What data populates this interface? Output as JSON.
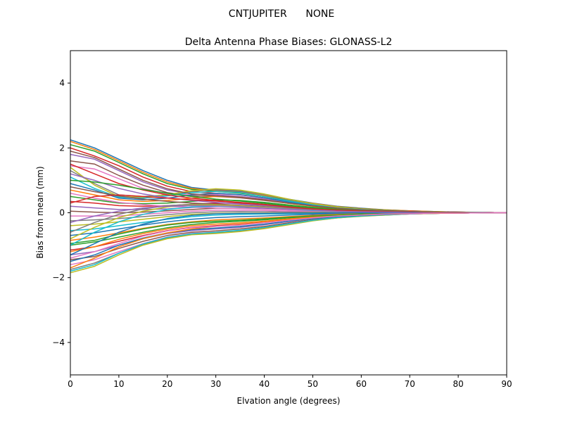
{
  "figure": {
    "suptitle": "CNTJUPITER      NONE"
  },
  "chart_data": {
    "type": "line",
    "title": "Delta Antenna Phase Biases: GLONASS-L2",
    "xlabel": "Elvation angle (degrees)",
    "ylabel": "Bias from mean (mm)",
    "xlim": [
      0,
      90
    ],
    "ylim": [
      -5,
      5
    ],
    "xticks": [
      0,
      10,
      20,
      30,
      40,
      50,
      60,
      70,
      80,
      90
    ],
    "yticks": [
      -4,
      -2,
      0,
      2,
      4
    ],
    "ytick_labels": [
      "−4",
      "−2",
      "0",
      "2",
      "4"
    ],
    "grid": false,
    "legend": "none",
    "x": [
      0,
      5,
      10,
      15,
      20,
      25,
      30,
      35,
      40,
      45,
      50,
      55,
      60,
      65,
      70,
      75,
      80,
      85,
      90
    ],
    "palette": [
      "#1f77b4",
      "#ff7f0e",
      "#2ca02c",
      "#d62728",
      "#9467bd",
      "#8c564b",
      "#e377c2",
      "#7f7f7f",
      "#bcbd22",
      "#17becf"
    ],
    "series": [
      {
        "values": [
          2.25,
          2.0,
          1.65,
          1.3,
          1.0,
          0.78,
          0.7,
          0.65,
          0.55,
          0.42,
          0.3,
          0.2,
          0.14,
          0.09,
          0.06,
          0.04,
          0.02,
          0.01,
          0.0
        ]
      },
      {
        "values": [
          2.2,
          1.95,
          1.6,
          1.25,
          0.95,
          0.75,
          0.68,
          0.63,
          0.53,
          0.4,
          0.29,
          0.19,
          0.13,
          0.09,
          0.06,
          0.04,
          0.02,
          0.01,
          0.0
        ]
      },
      {
        "values": [
          2.1,
          1.9,
          1.55,
          1.2,
          0.9,
          0.72,
          0.66,
          0.6,
          0.5,
          0.38,
          0.27,
          0.18,
          0.12,
          0.08,
          0.05,
          0.03,
          0.02,
          0.01,
          0.0
        ]
      },
      {
        "values": [
          2.0,
          1.75,
          1.45,
          1.1,
          0.82,
          0.65,
          0.6,
          0.55,
          0.46,
          0.35,
          0.25,
          0.17,
          0.11,
          0.07,
          0.05,
          0.03,
          0.02,
          0.01,
          0.0
        ]
      },
      {
        "values": [
          1.8,
          1.65,
          1.3,
          0.95,
          0.7,
          0.58,
          0.55,
          0.5,
          0.42,
          0.32,
          0.23,
          0.15,
          0.1,
          0.07,
          0.04,
          0.03,
          0.02,
          0.01,
          0.0
        ]
      },
      {
        "values": [
          1.6,
          1.5,
          1.15,
          0.85,
          0.62,
          0.52,
          0.5,
          0.46,
          0.38,
          0.29,
          0.21,
          0.14,
          0.09,
          0.06,
          0.04,
          0.03,
          0.01,
          0.01,
          0.0
        ]
      },
      {
        "values": [
          1.45,
          1.35,
          1.05,
          0.75,
          0.58,
          0.55,
          0.58,
          0.55,
          0.45,
          0.33,
          0.23,
          0.15,
          0.1,
          0.06,
          0.04,
          0.03,
          0.01,
          0.01,
          0.0
        ]
      },
      {
        "values": [
          1.3,
          0.9,
          0.55,
          0.5,
          0.55,
          0.65,
          0.72,
          0.68,
          0.56,
          0.4,
          0.27,
          0.17,
          0.11,
          0.07,
          0.04,
          0.03,
          0.01,
          0.01,
          0.0
        ]
      },
      {
        "values": [
          1.4,
          0.85,
          0.5,
          0.48,
          0.56,
          0.68,
          0.74,
          0.7,
          0.58,
          0.42,
          0.28,
          0.18,
          0.11,
          0.07,
          0.04,
          0.03,
          0.01,
          0.01,
          0.0
        ]
      },
      {
        "values": [
          1.1,
          0.75,
          0.48,
          0.45,
          0.52,
          0.62,
          0.66,
          0.62,
          0.5,
          0.36,
          0.24,
          0.15,
          0.1,
          0.06,
          0.04,
          0.02,
          0.01,
          0.01,
          0.0
        ]
      },
      {
        "values": [
          0.9,
          0.7,
          0.45,
          0.4,
          0.45,
          0.55,
          0.6,
          0.56,
          0.46,
          0.33,
          0.22,
          0.14,
          0.09,
          0.06,
          0.03,
          0.02,
          0.01,
          0.0,
          0.0
        ]
      },
      {
        "values": [
          0.7,
          0.55,
          0.4,
          0.35,
          0.38,
          0.45,
          0.5,
          0.48,
          0.4,
          0.29,
          0.2,
          0.13,
          0.08,
          0.05,
          0.03,
          0.02,
          0.01,
          0.0,
          0.0
        ]
      },
      {
        "values": [
          0.5,
          0.4,
          0.3,
          0.28,
          0.3,
          0.35,
          0.4,
          0.38,
          0.32,
          0.24,
          0.17,
          0.11,
          0.07,
          0.04,
          0.03,
          0.02,
          0.01,
          0.0,
          0.0
        ]
      },
      {
        "values": [
          0.35,
          0.3,
          0.22,
          0.2,
          0.22,
          0.26,
          0.3,
          0.29,
          0.25,
          0.19,
          0.13,
          0.09,
          0.06,
          0.04,
          0.02,
          0.01,
          0.01,
          0.0,
          0.0
        ]
      },
      {
        "values": [
          0.2,
          0.15,
          0.1,
          0.1,
          0.12,
          0.16,
          0.2,
          0.2,
          0.17,
          0.13,
          0.09,
          0.06,
          0.04,
          0.03,
          0.02,
          0.01,
          0.0,
          0.0,
          0.0
        ]
      },
      {
        "values": [
          0.05,
          0.02,
          0.0,
          0.02,
          0.06,
          0.1,
          0.14,
          0.14,
          0.12,
          0.09,
          0.06,
          0.04,
          0.03,
          0.02,
          0.01,
          0.01,
          0.0,
          0.0,
          0.0
        ]
      },
      {
        "values": [
          -0.1,
          -0.1,
          -0.1,
          -0.05,
          0.0,
          0.05,
          0.08,
          0.08,
          0.07,
          0.05,
          0.04,
          0.03,
          0.02,
          0.01,
          0.01,
          0.0,
          0.0,
          0.0,
          0.0
        ]
      },
      {
        "values": [
          -0.25,
          -0.22,
          -0.18,
          -0.12,
          -0.06,
          0.0,
          0.03,
          0.04,
          0.03,
          0.02,
          0.02,
          0.01,
          0.01,
          0.0,
          0.0,
          0.0,
          0.0,
          0.0,
          0.0
        ]
      },
      {
        "values": [
          -0.4,
          -0.35,
          -0.28,
          -0.2,
          -0.12,
          -0.05,
          -0.02,
          -0.01,
          -0.01,
          -0.01,
          0.0,
          0.0,
          0.0,
          0.0,
          0.0,
          0.0,
          0.0,
          0.0,
          0.0
        ]
      },
      {
        "values": [
          -0.55,
          -0.5,
          -0.4,
          -0.3,
          -0.2,
          -0.12,
          -0.07,
          -0.05,
          -0.04,
          -0.03,
          -0.02,
          -0.01,
          -0.01,
          0.0,
          0.0,
          0.0,
          0.0,
          0.0,
          0.0
        ]
      },
      {
        "values": [
          -0.7,
          -0.62,
          -0.5,
          -0.38,
          -0.28,
          -0.2,
          -0.15,
          -0.12,
          -0.1,
          -0.07,
          -0.05,
          -0.03,
          -0.02,
          -0.01,
          -0.01,
          0.0,
          0.0,
          0.0,
          0.0
        ]
      },
      {
        "values": [
          -0.85,
          -0.75,
          -0.62,
          -0.48,
          -0.36,
          -0.28,
          -0.22,
          -0.19,
          -0.16,
          -0.12,
          -0.08,
          -0.05,
          -0.03,
          -0.02,
          -0.01,
          -0.01,
          0.0,
          0.0,
          0.0
        ]
      },
      {
        "values": [
          -1.0,
          -0.9,
          -0.75,
          -0.6,
          -0.46,
          -0.36,
          -0.3,
          -0.26,
          -0.22,
          -0.16,
          -0.11,
          -0.07,
          -0.05,
          -0.03,
          -0.02,
          -0.01,
          0.0,
          0.0,
          0.0
        ]
      },
      {
        "values": [
          -1.15,
          -1.05,
          -0.88,
          -0.7,
          -0.55,
          -0.45,
          -0.4,
          -0.35,
          -0.29,
          -0.21,
          -0.14,
          -0.09,
          -0.06,
          -0.04,
          -0.02,
          -0.01,
          -0.01,
          0.0,
          0.0
        ]
      },
      {
        "values": [
          -1.3,
          -1.2,
          -1.0,
          -0.8,
          -0.64,
          -0.55,
          -0.5,
          -0.45,
          -0.37,
          -0.27,
          -0.18,
          -0.12,
          -0.08,
          -0.05,
          -0.03,
          -0.02,
          -0.01,
          0.0,
          0.0
        ]
      },
      {
        "values": [
          -1.45,
          -1.35,
          -1.1,
          -0.88,
          -0.7,
          -0.6,
          -0.56,
          -0.5,
          -0.42,
          -0.31,
          -0.21,
          -0.14,
          -0.09,
          -0.06,
          -0.03,
          -0.02,
          -0.01,
          0.0,
          0.0
        ]
      },
      {
        "values": [
          -1.6,
          -1.45,
          -1.2,
          -0.95,
          -0.75,
          -0.64,
          -0.6,
          -0.55,
          -0.46,
          -0.34,
          -0.23,
          -0.15,
          -0.1,
          -0.06,
          -0.04,
          -0.02,
          -0.01,
          0.0,
          0.0
        ]
      },
      {
        "values": [
          -1.75,
          -1.55,
          -1.25,
          -0.98,
          -0.78,
          -0.66,
          -0.62,
          -0.57,
          -0.48,
          -0.36,
          -0.24,
          -0.16,
          -0.1,
          -0.07,
          -0.04,
          -0.02,
          -0.01,
          0.0,
          0.0
        ]
      },
      {
        "values": [
          -1.85,
          -1.65,
          -1.3,
          -1.0,
          -0.8,
          -0.68,
          -0.64,
          -0.58,
          -0.49,
          -0.37,
          -0.25,
          -0.16,
          -0.11,
          -0.07,
          -0.04,
          -0.02,
          -0.01,
          0.0,
          0.0
        ]
      },
      {
        "values": [
          -1.8,
          -1.6,
          -1.25,
          -0.96,
          -0.76,
          -0.65,
          -0.6,
          -0.54,
          -0.45,
          -0.34,
          -0.23,
          -0.15,
          -0.1,
          -0.06,
          -0.04,
          -0.02,
          -0.01,
          0.0,
          0.0
        ]
      },
      {
        "values": [
          -1.5,
          -1.3,
          -1.0,
          -0.78,
          -0.62,
          -0.52,
          -0.47,
          -0.42,
          -0.35,
          -0.26,
          -0.18,
          -0.12,
          -0.08,
          -0.05,
          -0.03,
          -0.02,
          -0.01,
          0.0,
          0.0
        ]
      },
      {
        "values": [
          -1.2,
          -1.05,
          -0.82,
          -0.64,
          -0.5,
          -0.4,
          -0.35,
          -0.31,
          -0.26,
          -0.19,
          -0.13,
          -0.09,
          -0.06,
          -0.04,
          -0.02,
          -0.01,
          -0.01,
          0.0,
          0.0
        ]
      },
      {
        "values": [
          -0.95,
          -0.85,
          -0.66,
          -0.5,
          -0.38,
          -0.3,
          -0.26,
          -0.23,
          -0.19,
          -0.14,
          -0.1,
          -0.07,
          -0.04,
          -0.03,
          -0.02,
          -0.01,
          0.0,
          0.0,
          0.0
        ]
      },
      {
        "values": [
          1.5,
          1.2,
          0.9,
          0.7,
          0.55,
          0.45,
          0.38,
          0.32,
          0.26,
          0.19,
          0.13,
          0.09,
          0.06,
          0.04,
          0.02,
          0.01,
          0.01,
          0.0,
          0.0
        ]
      },
      {
        "values": [
          1.2,
          1.0,
          0.75,
          0.58,
          0.46,
          0.38,
          0.32,
          0.27,
          0.22,
          0.16,
          0.11,
          0.07,
          0.05,
          0.03,
          0.02,
          0.01,
          0.0,
          0.0,
          0.0
        ]
      },
      {
        "values": [
          0.8,
          0.65,
          0.52,
          0.42,
          0.35,
          0.3,
          0.27,
          0.23,
          0.19,
          0.14,
          0.1,
          0.06,
          0.04,
          0.03,
          0.02,
          0.01,
          0.0,
          0.0,
          0.0
        ]
      },
      {
        "values": [
          0.6,
          0.45,
          0.32,
          0.25,
          0.2,
          0.17,
          0.15,
          0.13,
          0.11,
          0.08,
          0.06,
          0.04,
          0.03,
          0.02,
          0.01,
          0.01,
          0.0,
          0.0,
          0.0
        ]
      },
      {
        "values": [
          -0.6,
          -0.3,
          -0.05,
          0.12,
          0.22,
          0.26,
          0.25,
          0.22,
          0.18,
          0.13,
          0.09,
          0.06,
          0.04,
          0.02,
          0.01,
          0.01,
          0.0,
          0.0,
          0.0
        ]
      },
      {
        "values": [
          -0.8,
          -0.45,
          -0.15,
          0.05,
          0.18,
          0.24,
          0.24,
          0.21,
          0.17,
          0.12,
          0.08,
          0.05,
          0.03,
          0.02,
          0.01,
          0.01,
          0.0,
          0.0,
          0.0
        ]
      },
      {
        "values": [
          -1.0,
          -0.6,
          -0.28,
          -0.05,
          0.1,
          0.18,
          0.2,
          0.18,
          0.15,
          0.11,
          0.07,
          0.05,
          0.03,
          0.02,
          0.01,
          0.0,
          0.0,
          0.0,
          0.0
        ]
      },
      {
        "values": [
          -1.3,
          -0.95,
          -0.6,
          -0.35,
          -0.18,
          -0.08,
          -0.03,
          -0.02,
          -0.02,
          -0.01,
          -0.01,
          0.0,
          0.0,
          0.0,
          0.0,
          0.0,
          0.0,
          0.0,
          0.0
        ]
      },
      {
        "values": [
          -1.7,
          -1.4,
          -1.05,
          -0.8,
          -0.62,
          -0.5,
          -0.42,
          -0.36,
          -0.3,
          -0.22,
          -0.15,
          -0.1,
          -0.07,
          -0.04,
          -0.03,
          -0.02,
          -0.01,
          0.0,
          0.0
        ]
      },
      {
        "values": [
          1.0,
          0.95,
          0.85,
          0.72,
          0.6,
          0.5,
          0.42,
          0.36,
          0.29,
          0.21,
          0.14,
          0.09,
          0.06,
          0.04,
          0.02,
          0.01,
          0.01,
          0.0,
          0.0
        ]
      },
      {
        "values": [
          0.3,
          0.5,
          0.55,
          0.5,
          0.45,
          0.4,
          0.36,
          0.31,
          0.25,
          0.18,
          0.12,
          0.08,
          0.05,
          0.03,
          0.02,
          0.01,
          0.0,
          0.0,
          0.0
        ]
      },
      {
        "values": [
          -0.3,
          -0.1,
          0.05,
          0.15,
          0.2,
          0.22,
          0.21,
          0.19,
          0.15,
          0.11,
          0.08,
          0.05,
          0.03,
          0.02,
          0.01,
          0.01,
          0.0,
          0.0,
          0.0
        ]
      },
      {
        "values": [
          1.9,
          1.7,
          1.35,
          1.0,
          0.74,
          0.58,
          0.52,
          0.48,
          0.4,
          0.3,
          0.21,
          0.14,
          0.09,
          0.06,
          0.04,
          0.02,
          0.01,
          0.0,
          0.0
        ]
      },
      {
        "values": [
          -1.4,
          -1.2,
          -0.95,
          -0.72,
          -0.56,
          -0.46,
          -0.42,
          -0.38,
          -0.31,
          -0.23,
          -0.16,
          -0.1,
          -0.07,
          -0.04,
          -0.03,
          -0.01,
          -0.01,
          0.0,
          0.0
        ]
      }
    ]
  }
}
